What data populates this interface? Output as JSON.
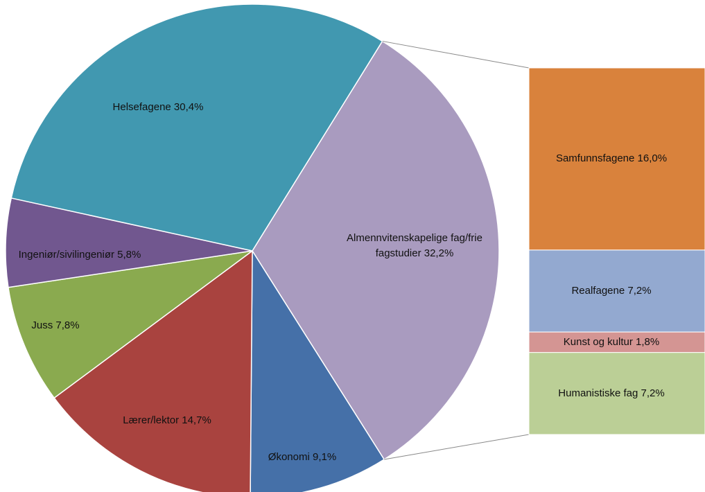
{
  "chart_data": {
    "type": "pie-of-bar",
    "pie": {
      "categories": [
        "Almennvitenskapelige fag/frie fagstudier",
        "Økonomi",
        "Lærer/lektor",
        "Juss",
        "Ingeniør/sivilingeniør",
        "Helsefagene"
      ],
      "values": [
        32.2,
        9.1,
        14.7,
        7.8,
        5.8,
        30.4
      ],
      "value_labels": [
        "Almennvitenskapelige fag/frie fagstudier 32,2%",
        "Økonomi 9,1%",
        "Lærer/lektor 14,7%",
        "Juss 7,8%",
        "Ingeniør/sivilingeniør 5,8%",
        "Helsefagene 30,4%"
      ],
      "colors": [
        "#a99bbf",
        "#4570a8",
        "#a9433f",
        "#8aaa4f",
        "#71578f",
        "#4198b0"
      ]
    },
    "bar": {
      "categories": [
        "Samfunnsfagene",
        "Realfagene",
        "Kunst og kultur",
        "Humanistiske fag"
      ],
      "values": [
        16.0,
        7.2,
        1.8,
        7.2
      ],
      "value_labels": [
        "Samfunnsfagene 16,0%",
        "Realfagene 7,2%",
        "Kunst og kultur 1,8%",
        "Humanistiske fag 7,2%"
      ],
      "colors": [
        "#d9823c",
        "#93a9d0",
        "#d49593",
        "#bbcf96"
      ]
    }
  }
}
